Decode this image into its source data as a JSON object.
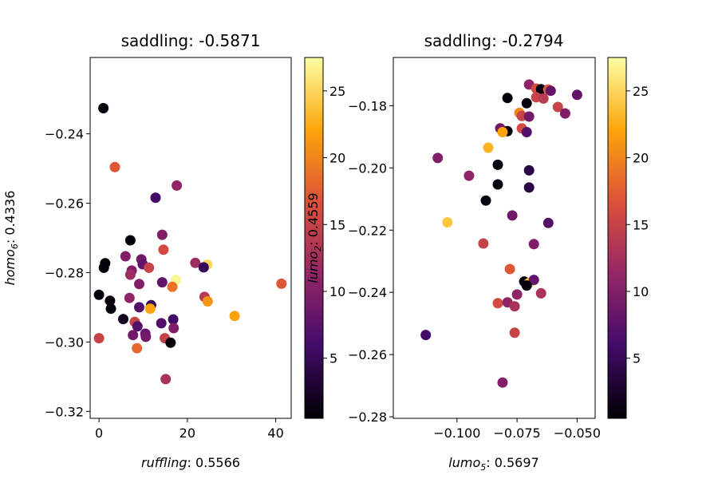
{
  "colormap": {
    "name": "inferno",
    "stops": [
      "#000004",
      "#420a68",
      "#932667",
      "#dd513a",
      "#fca50a",
      "#fcffa4"
    ]
  },
  "chart_data": [
    {
      "type": "scatter",
      "title": "saddling: -0.5871",
      "xlabel_var": "ruffling",
      "xlabel_rest": ": 0.5566",
      "ylabel_var": "homo",
      "ylabel_sub": "6",
      "ylabel_rest": ": 0.4336",
      "xlim": [
        -2,
        43.5
      ],
      "ylim": [
        -0.322,
        -0.218
      ],
      "xticks": [
        0,
        20,
        40
      ],
      "xtick_labels": [
        "0",
        "20",
        "40"
      ],
      "yticks": [
        -0.32,
        -0.3,
        -0.28,
        -0.26,
        -0.24
      ],
      "ytick_labels": [
        "−0.32",
        "−0.30",
        "−0.28",
        "−0.26",
        "−0.24"
      ],
      "colorbar": {
        "range": [
          0.5,
          27.5
        ],
        "ticks": [
          5,
          10,
          15,
          20,
          25
        ],
        "tick_labels": [
          "5",
          "10",
          "15",
          "20",
          "25"
        ]
      },
      "points": [
        {
          "x": 1.0,
          "y": -0.2326,
          "c": 1
        },
        {
          "x": 3.6,
          "y": -0.2496,
          "c": 17
        },
        {
          "x": 17.6,
          "y": -0.2549,
          "c": 11
        },
        {
          "x": 12.8,
          "y": -0.2584,
          "c": 6
        },
        {
          "x": 7.1,
          "y": -0.2707,
          "c": 1
        },
        {
          "x": 14.3,
          "y": -0.2691,
          "c": 10
        },
        {
          "x": 14.6,
          "y": -0.2734,
          "c": 16
        },
        {
          "x": 6.0,
          "y": -0.2753,
          "c": 10
        },
        {
          "x": 1.4,
          "y": -0.2773,
          "c": 1
        },
        {
          "x": 9.6,
          "y": -0.2762,
          "c": 9
        },
        {
          "x": 9.9,
          "y": -0.2776,
          "c": 8
        },
        {
          "x": 21.8,
          "y": -0.2772,
          "c": 12
        },
        {
          "x": 24.5,
          "y": -0.2777,
          "c": 25
        },
        {
          "x": 1.1,
          "y": -0.2786,
          "c": 1
        },
        {
          "x": 11.3,
          "y": -0.2786,
          "c": 15
        },
        {
          "x": 23.7,
          "y": -0.2785,
          "c": 5
        },
        {
          "x": 7.4,
          "y": -0.2794,
          "c": 10
        },
        {
          "x": 7.1,
          "y": -0.2806,
          "c": 12
        },
        {
          "x": 17.4,
          "y": -0.2821,
          "c": 27
        },
        {
          "x": 14.3,
          "y": -0.2828,
          "c": 8
        },
        {
          "x": 9.1,
          "y": -0.2833,
          "c": 10
        },
        {
          "x": 16.6,
          "y": -0.2841,
          "c": 19
        },
        {
          "x": 41.3,
          "y": -0.2832,
          "c": 17
        },
        {
          "x": 0.0,
          "y": -0.2864,
          "c": 1
        },
        {
          "x": 6.9,
          "y": -0.2873,
          "c": 11
        },
        {
          "x": 23.9,
          "y": -0.287,
          "c": 14
        },
        {
          "x": 24.6,
          "y": -0.2883,
          "c": 21
        },
        {
          "x": 2.5,
          "y": -0.2881,
          "c": 1
        },
        {
          "x": 2.7,
          "y": -0.2904,
          "c": 1
        },
        {
          "x": 9.1,
          "y": -0.29,
          "c": 7
        },
        {
          "x": 11.8,
          "y": -0.2894,
          "c": 5
        },
        {
          "x": 11.6,
          "y": -0.2904,
          "c": 22
        },
        {
          "x": 5.5,
          "y": -0.2934,
          "c": 2
        },
        {
          "x": 16.8,
          "y": -0.2935,
          "c": 6
        },
        {
          "x": 8.1,
          "y": -0.2942,
          "c": 15
        },
        {
          "x": 14.1,
          "y": -0.2946,
          "c": 7
        },
        {
          "x": 8.7,
          "y": -0.2955,
          "c": 7
        },
        {
          "x": 16.9,
          "y": -0.296,
          "c": 10
        },
        {
          "x": 30.7,
          "y": -0.2925,
          "c": 22
        },
        {
          "x": 7.7,
          "y": -0.298,
          "c": 9
        },
        {
          "x": 10.5,
          "y": -0.2976,
          "c": 8
        },
        {
          "x": 10.6,
          "y": -0.2985,
          "c": 9
        },
        {
          "x": 0.0,
          "y": -0.2989,
          "c": 15
        },
        {
          "x": 14.9,
          "y": -0.2989,
          "c": 15
        },
        {
          "x": 16.2,
          "y": -0.3002,
          "c": 1
        },
        {
          "x": 8.6,
          "y": -0.3018,
          "c": 18
        },
        {
          "x": 15.1,
          "y": -0.3107,
          "c": 13
        }
      ]
    },
    {
      "type": "scatter",
      "title": "saddling: -0.2794",
      "xlabel_var": "lumo",
      "xlabel_sub": "5",
      "xlabel_rest": ": 0.5697",
      "ylabel_var": "lumo",
      "ylabel_sub": "2",
      "ylabel_rest": ": 0.4559",
      "xlim": [
        -0.1265,
        -0.0425
      ],
      "ylim": [
        -0.2805,
        -0.1645
      ],
      "xticks": [
        -0.1,
        -0.075,
        -0.05
      ],
      "xtick_labels": [
        "−0.100",
        "−0.075",
        "−0.050"
      ],
      "yticks": [
        -0.28,
        -0.26,
        -0.24,
        -0.22,
        -0.2,
        -0.18
      ],
      "ytick_labels": [
        "−0.28",
        "−0.26",
        "−0.24",
        "−0.22",
        "−0.20",
        "−0.18"
      ],
      "colorbar": {
        "range": [
          0.5,
          27.5
        ],
        "ticks": [
          5,
          10,
          15,
          20,
          25
        ],
        "tick_labels": [
          "5",
          "10",
          "15",
          "20",
          "25"
        ]
      },
      "points": [
        {
          "x": -0.07,
          "y": -0.1732,
          "c": 11
        },
        {
          "x": -0.067,
          "y": -0.1745,
          "c": 16
        },
        {
          "x": -0.065,
          "y": -0.1747,
          "c": 1
        },
        {
          "x": -0.062,
          "y": -0.1748,
          "c": 17
        },
        {
          "x": -0.061,
          "y": -0.1752,
          "c": 8
        },
        {
          "x": -0.05,
          "y": -0.1765,
          "c": 8
        },
        {
          "x": -0.067,
          "y": -0.1773,
          "c": 15
        },
        {
          "x": -0.064,
          "y": -0.1777,
          "c": 14
        },
        {
          "x": -0.079,
          "y": -0.1775,
          "c": 1
        },
        {
          "x": -0.071,
          "y": -0.1792,
          "c": 1
        },
        {
          "x": -0.058,
          "y": -0.1804,
          "c": 15
        },
        {
          "x": -0.074,
          "y": -0.1823,
          "c": 20
        },
        {
          "x": -0.073,
          "y": -0.1833,
          "c": 15
        },
        {
          "x": -0.07,
          "y": -0.1835,
          "c": 9
        },
        {
          "x": -0.055,
          "y": -0.1825,
          "c": 10
        },
        {
          "x": -0.082,
          "y": -0.1873,
          "c": 9
        },
        {
          "x": -0.079,
          "y": -0.1882,
          "c": 1
        },
        {
          "x": -0.081,
          "y": -0.1885,
          "c": 22
        },
        {
          "x": -0.073,
          "y": -0.1873,
          "c": 16
        },
        {
          "x": -0.071,
          "y": -0.1885,
          "c": 7
        },
        {
          "x": -0.087,
          "y": -0.1935,
          "c": 23
        },
        {
          "x": -0.108,
          "y": -0.1968,
          "c": 10
        },
        {
          "x": -0.083,
          "y": -0.199,
          "c": 1
        },
        {
          "x": -0.07,
          "y": -0.2008,
          "c": 4
        },
        {
          "x": -0.095,
          "y": -0.2025,
          "c": 11
        },
        {
          "x": -0.083,
          "y": -0.2053,
          "c": 1
        },
        {
          "x": -0.07,
          "y": -0.2063,
          "c": 4
        },
        {
          "x": -0.088,
          "y": -0.2105,
          "c": 1
        },
        {
          "x": -0.077,
          "y": -0.2153,
          "c": 9
        },
        {
          "x": -0.104,
          "y": -0.2175,
          "c": 24
        },
        {
          "x": -0.062,
          "y": -0.2177,
          "c": 7
        },
        {
          "x": -0.089,
          "y": -0.2243,
          "c": 15
        },
        {
          "x": -0.068,
          "y": -0.2245,
          "c": 10
        },
        {
          "x": -0.078,
          "y": -0.2325,
          "c": 17
        },
        {
          "x": -0.072,
          "y": -0.2365,
          "c": 1
        },
        {
          "x": -0.07,
          "y": -0.237,
          "c": 24
        },
        {
          "x": -0.068,
          "y": -0.236,
          "c": 8
        },
        {
          "x": -0.071,
          "y": -0.2378,
          "c": 1
        },
        {
          "x": -0.075,
          "y": -0.2407,
          "c": 11
        },
        {
          "x": -0.065,
          "y": -0.2403,
          "c": 13
        },
        {
          "x": -0.083,
          "y": -0.2435,
          "c": 16
        },
        {
          "x": -0.079,
          "y": -0.2432,
          "c": 11
        },
        {
          "x": -0.076,
          "y": -0.2445,
          "c": 13
        },
        {
          "x": -0.113,
          "y": -0.2537,
          "c": 6
        },
        {
          "x": -0.076,
          "y": -0.253,
          "c": 15
        },
        {
          "x": -0.081,
          "y": -0.269,
          "c": 10
        }
      ]
    }
  ]
}
